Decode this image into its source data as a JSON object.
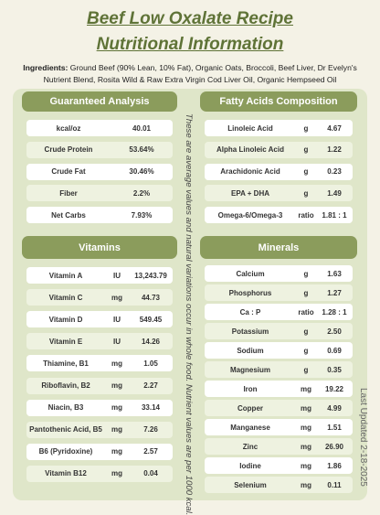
{
  "title": {
    "line1": "Beef Low Oxalate Recipe",
    "line2": "Nutritional Information"
  },
  "ingredients": {
    "label": "Ingredients:",
    "text": "Ground Beef (90% Lean, 10% Fat), Organic Oats, Broccoli, Beef Liver, Dr Evelyn's Nutrient Blend, Rosita Wild & Raw Extra Virgin Cod Liver Oil, Organic Hempseed Oil"
  },
  "guaranteed_analysis": {
    "heading": "Guaranteed Analysis",
    "rows": [
      [
        "kcal/oz",
        "40.01"
      ],
      [
        "Crude Protein",
        "53.64%"
      ],
      [
        "Crude Fat",
        "30.46%"
      ],
      [
        "Fiber",
        "2.2%"
      ],
      [
        "Net Carbs",
        "7.93%"
      ]
    ]
  },
  "fatty_acids": {
    "heading": "Fatty Acids Composition",
    "rows": [
      [
        "Linoleic Acid",
        "g",
        "4.67"
      ],
      [
        "Alpha Linoleic Acid",
        "g",
        "1.22"
      ],
      [
        "Arachidonic Acid",
        "g",
        "0.23"
      ],
      [
        "EPA + DHA",
        "g",
        "1.49"
      ],
      [
        "Omega-6/Omega-3",
        "ratio",
        "1.81 : 1"
      ]
    ]
  },
  "vitamins": {
    "heading": "Vitamins",
    "rows": [
      [
        "Vitamin A",
        "IU",
        "13,243.79"
      ],
      [
        "Vitamin C",
        "mg",
        "44.73"
      ],
      [
        "Vitamin D",
        "IU",
        "549.45"
      ],
      [
        "Vitamin E",
        "IU",
        "14.26"
      ],
      [
        "Thiamine, B1",
        "mg",
        "1.05"
      ],
      [
        "Riboflavin, B2",
        "mg",
        "2.27"
      ],
      [
        "Niacin, B3",
        "mg",
        "33.14"
      ],
      [
        "Pantothenic Acid, B5",
        "mg",
        "7.26"
      ],
      [
        "B6 (Pyridoxine)",
        "mg",
        "2.57"
      ],
      [
        "Vitamin B12",
        "mg",
        "0.04"
      ]
    ]
  },
  "minerals": {
    "heading": "Minerals",
    "rows": [
      [
        "Calcium",
        "g",
        "1.63"
      ],
      [
        "Phosphorus",
        "g",
        "1.27"
      ],
      [
        "Ca : P",
        "ratio",
        "1.28 : 1"
      ],
      [
        "Potassium",
        "g",
        "2.50"
      ],
      [
        "Sodium",
        "g",
        "0.69"
      ],
      [
        "Magnesium",
        "g",
        "0.35"
      ],
      [
        "Iron",
        "mg",
        "19.22"
      ],
      [
        "Copper",
        "mg",
        "4.99"
      ],
      [
        "Manganese",
        "mg",
        "1.51"
      ],
      [
        "Zinc",
        "mg",
        "26.90"
      ],
      [
        "Iodine",
        "mg",
        "1.86"
      ],
      [
        "Selenium",
        "mg",
        "0.11"
      ]
    ]
  },
  "note": "These are average values and natural variations occur in whole food. Nutrient values are per 1000 kcal.",
  "last_updated": "Last Updated 2-18-2025"
}
